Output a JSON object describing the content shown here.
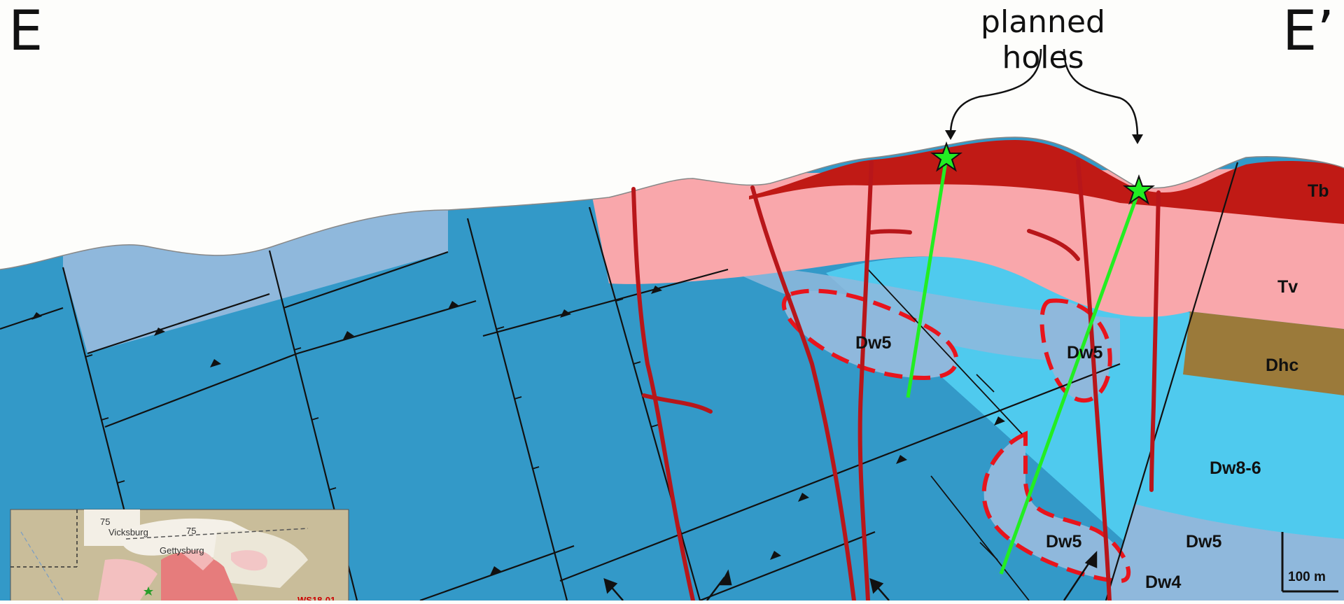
{
  "section": {
    "left_label": "E",
    "right_label": "E’",
    "annotation": "planned holes"
  },
  "units": {
    "tb": "Tb",
    "tv": "Tv",
    "dhc": "Dhc",
    "dw86": "Dw8-6",
    "dw5_right": "Dw5",
    "dw4": "Dw4",
    "dw5_target_a": "Dw5",
    "dw5_target_b": "Dw5",
    "dw5_target_c": "Dw5"
  },
  "scale_bar": {
    "label": "100 m"
  },
  "inset": {
    "labels": [
      "Vicksburg",
      "Gettysburg"
    ],
    "dips": [
      "75",
      "75"
    ],
    "sample_id": "WS18-01"
  },
  "colors": {
    "background": "#fdfdfb",
    "basement_blue": "#3399c8",
    "light_blue": "#8fb8dc",
    "cyan": "#4fcaee",
    "pink_tv": "#f9a7ab",
    "red_tb": "#c01a15",
    "brown_dhc": "#9b7a3a",
    "drill_green": "#22ee22",
    "target_dash_red": "#e8141c"
  }
}
